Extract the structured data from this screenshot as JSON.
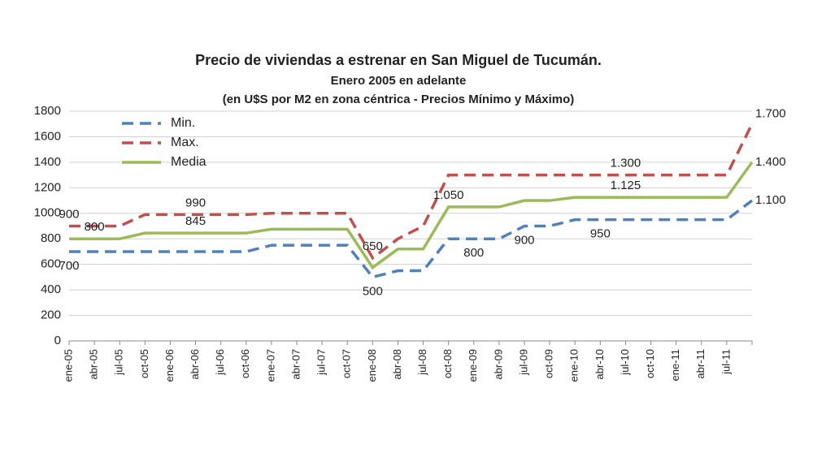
{
  "chart_data": {
    "type": "line",
    "title": "Precio de viviendas a estrenar en San Miguel de Tucumán.",
    "subtitle": "Enero 2005 en adelante",
    "subtitle2": "(en U$S por M2 en zona céntrica - Precios Mínimo y Máximo)",
    "categories": [
      "ene-05",
      "abr-05",
      "jul-05",
      "oct-05",
      "ene-06",
      "abr-06",
      "jul-06",
      "oct-06",
      "ene-07",
      "abr-07",
      "jul-07",
      "oct-07",
      "ene-08",
      "abr-08",
      "jul-08",
      "oct-08",
      "ene-09",
      "abr-09",
      "jul-09",
      "oct-09",
      "ene-10",
      "abr-10",
      "jul-10",
      "oct-10",
      "ene-11",
      "abr-11",
      "jul-11",
      null
    ],
    "series": [
      {
        "name": "Min.",
        "color": "#4f81bd",
        "style": "dashed",
        "values": [
          700,
          700,
          700,
          700,
          700,
          700,
          700,
          700,
          750,
          750,
          750,
          750,
          500,
          550,
          550,
          800,
          800,
          800,
          900,
          900,
          950,
          950,
          950,
          950,
          950,
          950,
          950,
          1100
        ],
        "value_labels": [
          "700",
          null,
          null,
          null,
          null,
          null,
          null,
          null,
          null,
          null,
          null,
          null,
          "500",
          null,
          null,
          null,
          "800",
          null,
          "900",
          null,
          null,
          "950",
          null,
          null,
          null,
          null,
          null,
          "1.100"
        ]
      },
      {
        "name": "Max.",
        "color": "#c0504d",
        "style": "dashed",
        "values": [
          900,
          900,
          900,
          990,
          990,
          990,
          990,
          990,
          1000,
          1000,
          1000,
          1000,
          650,
          800,
          900,
          1300,
          1300,
          1300,
          1300,
          1300,
          1300,
          1300,
          1300,
          1300,
          1300,
          1300,
          1300,
          1700
        ],
        "value_labels": [
          "900",
          null,
          null,
          null,
          null,
          "990",
          null,
          null,
          null,
          null,
          null,
          null,
          "650",
          null,
          null,
          null,
          null,
          null,
          null,
          null,
          null,
          null,
          "1.300",
          null,
          null,
          null,
          null,
          "1.700"
        ]
      },
      {
        "name": "Media",
        "color": "#9bbb59",
        "style": "solid",
        "values": [
          800,
          800,
          800,
          845,
          845,
          845,
          845,
          845,
          875,
          875,
          875,
          875,
          575,
          720,
          720,
          1050,
          1050,
          1050,
          1100,
          1100,
          1125,
          1125,
          1125,
          1125,
          1125,
          1125,
          1125,
          1400
        ],
        "value_labels": [
          null,
          "800",
          null,
          null,
          null,
          "845",
          null,
          null,
          null,
          null,
          null,
          null,
          null,
          null,
          null,
          "1.050",
          null,
          null,
          null,
          null,
          null,
          null,
          "1.125",
          null,
          null,
          null,
          null,
          "1.400"
        ]
      }
    ],
    "ylim": [
      0,
      1800
    ],
    "yticks": [
      0,
      200,
      400,
      600,
      800,
      1000,
      1200,
      1400,
      1600,
      1800
    ],
    "grid": true,
    "legend": "top-left"
  }
}
